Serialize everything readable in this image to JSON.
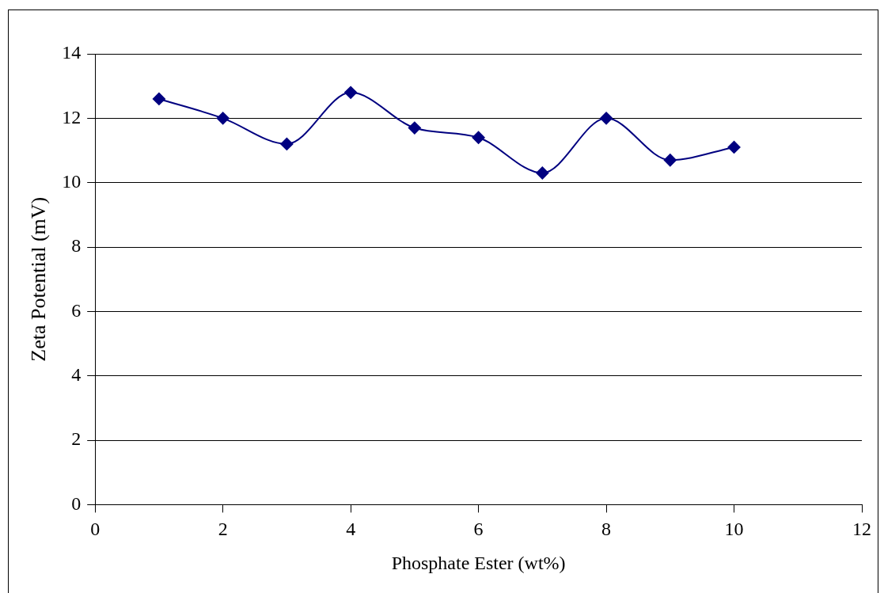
{
  "chart_data": {
    "type": "line",
    "xlabel": "Phosphate Ester (wt%)",
    "ylabel": "Zeta Potential (mV)",
    "x": [
      1,
      2,
      3,
      4,
      5,
      6,
      7,
      8,
      9,
      10
    ],
    "series": [
      {
        "color": "#000080",
        "values": [
          12.6,
          12.0,
          11.2,
          12.8,
          11.7,
          11.4,
          10.3,
          12.0,
          10.7,
          11.1
        ]
      }
    ],
    "xlim": [
      0,
      12
    ],
    "xticks": [
      0,
      2,
      4,
      6,
      8,
      10,
      12
    ],
    "ylim": [
      0,
      14
    ],
    "yticks": [
      0,
      2,
      4,
      6,
      8,
      10,
      12,
      14
    ],
    "grid": "y",
    "legend": false,
    "marker": "diamond",
    "line_style": "solid"
  }
}
